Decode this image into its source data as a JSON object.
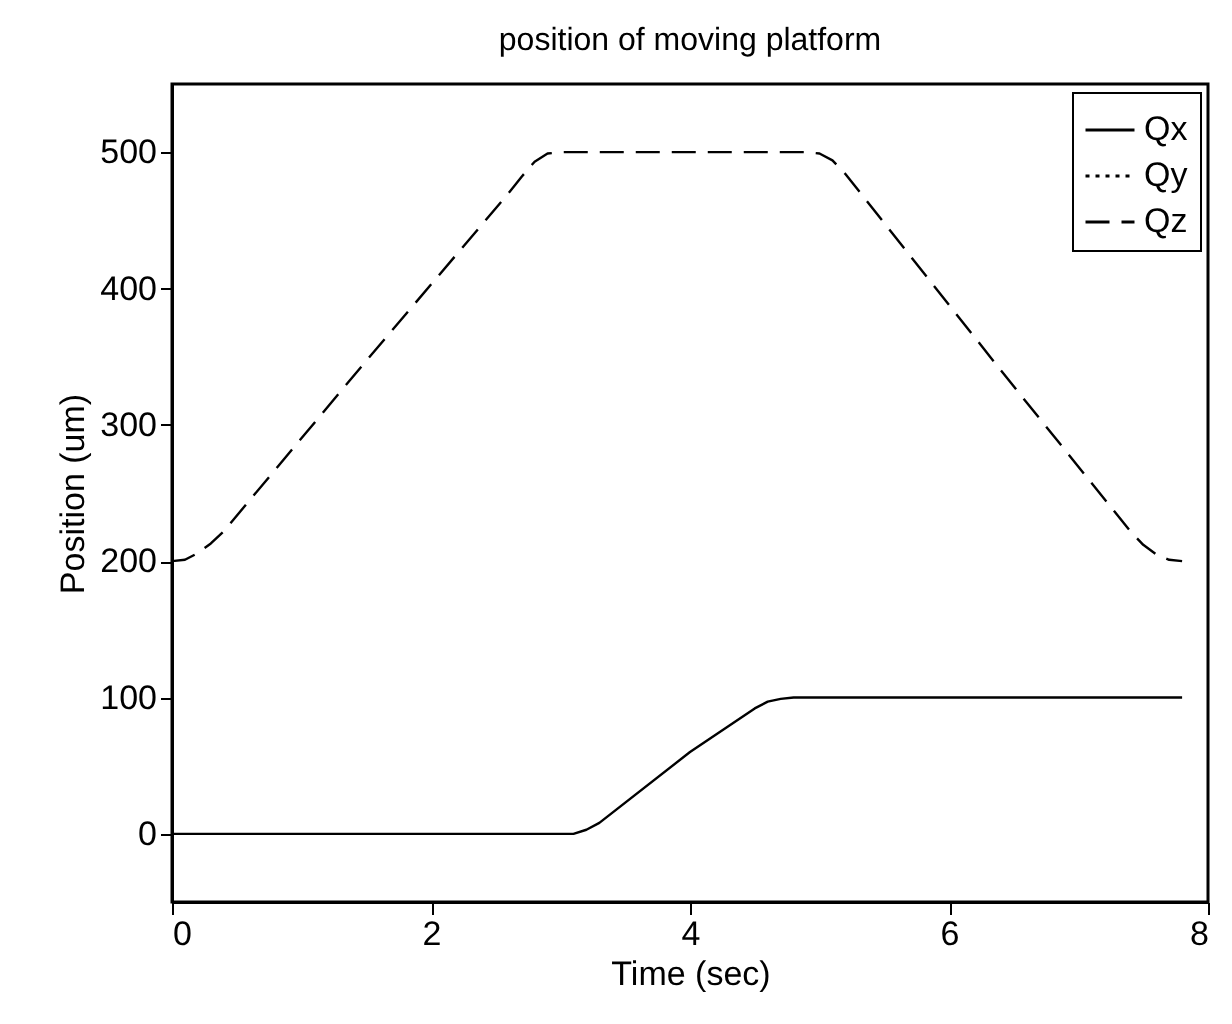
{
  "chart_data": {
    "type": "line",
    "title": "position of moving platform",
    "xlabel": "Time (sec)",
    "ylabel": "Position (um)",
    "xlim": [
      0,
      8
    ],
    "xticks": [
      0,
      2,
      4,
      6,
      8
    ],
    "ylim": [
      -50,
      550
    ],
    "yticks": [
      0,
      100,
      200,
      300,
      400,
      500
    ],
    "grid": false,
    "legend": "top right",
    "series": [
      {
        "name": "Qx",
        "color": "#000000",
        "line_style": "solid",
        "x": [
          0,
          3.1,
          3.2,
          3.3,
          4.0,
          4.5,
          4.6,
          4.7,
          4.8,
          7.8
        ],
        "values": [
          0,
          0,
          3,
          8,
          60,
          92,
          97,
          99,
          100,
          100
        ]
      },
      {
        "name": "Qy",
        "color": "#000000",
        "line_style": "dotted"
      },
      {
        "name": "Qz",
        "color": "#000000",
        "line_style": "dashed",
        "x": [
          0,
          0.1,
          0.2,
          0.3,
          0.4,
          1.5,
          2.6,
          2.7,
          2.8,
          2.9,
          3.0,
          4.9,
          5.0,
          5.1,
          5.2,
          5.3,
          6.4,
          7.4,
          7.5,
          7.6,
          7.7,
          7.8
        ],
        "values": [
          200,
          201,
          206,
          213,
          222,
          347,
          470,
          482,
          493,
          499,
          500,
          500,
          499,
          494,
          484,
          472,
          340,
          222,
          212,
          205,
          201,
          200
        ]
      }
    ]
  }
}
